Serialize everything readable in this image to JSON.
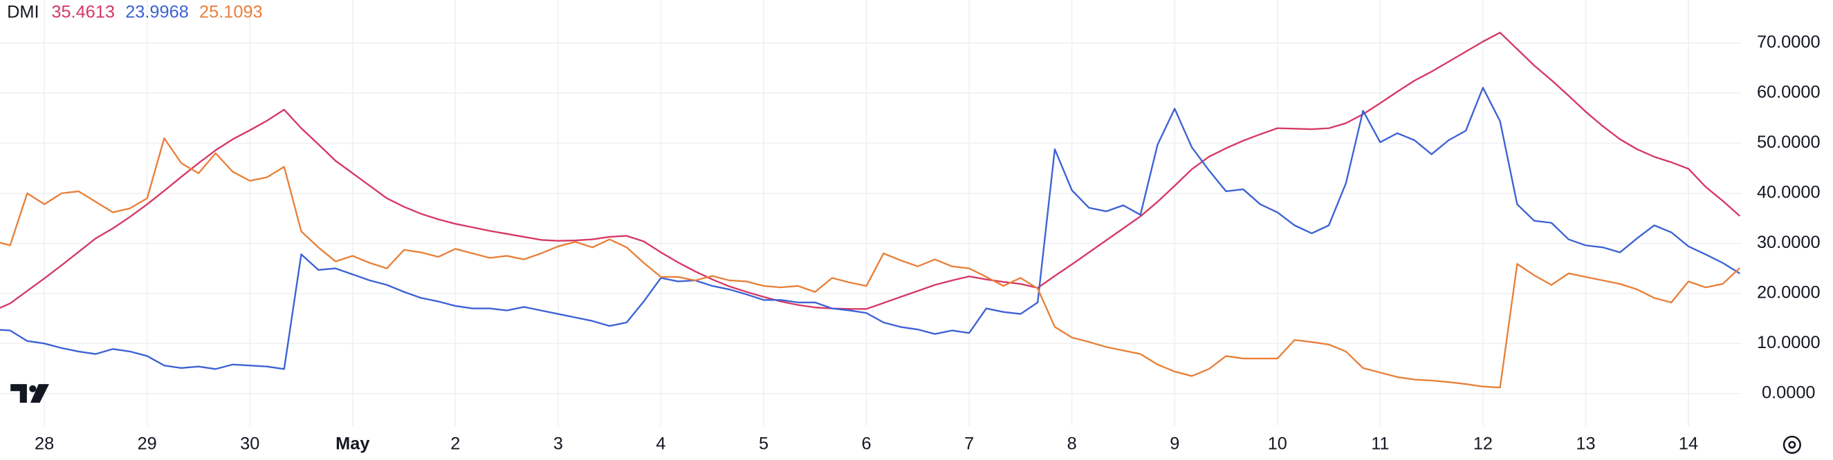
{
  "chart_data": {
    "type": "line",
    "title": "DMI",
    "categories": [
      null,
      null,
      null,
      "28",
      null,
      null,
      null,
      null,
      null,
      "29",
      null,
      null,
      null,
      null,
      null,
      "30",
      null,
      null,
      null,
      null,
      null,
      "May",
      null,
      null,
      null,
      null,
      null,
      "2",
      null,
      null,
      null,
      null,
      null,
      "3",
      null,
      null,
      null,
      null,
      null,
      "4",
      null,
      null,
      null,
      null,
      null,
      "5",
      null,
      null,
      null,
      null,
      null,
      "6",
      null,
      null,
      null,
      null,
      null,
      "7",
      null,
      null,
      null,
      null,
      null,
      "8",
      null,
      null,
      null,
      null,
      null,
      "9",
      null,
      null,
      null,
      null,
      null,
      "10",
      null,
      null,
      null,
      null,
      null,
      "11",
      null,
      null,
      null,
      null,
      null,
      "12",
      null,
      null,
      null,
      null,
      null,
      "13",
      null,
      null,
      null,
      null,
      null,
      "14",
      null,
      null,
      null
    ],
    "series": [
      {
        "color": "#d63864",
        "values": [
          16.5,
          18,
          20.5,
          23,
          25.6,
          28.3,
          31,
          33,
          35.3,
          37.8,
          40.5,
          43.3,
          46,
          48.6,
          50.8,
          52.6,
          54.5,
          56.7,
          53,
          49.8,
          46.5,
          44,
          41.5,
          39,
          37.3,
          35.9,
          34.8,
          33.9,
          33.2,
          32.5,
          31.9,
          31.3,
          30.7,
          30.5,
          30.6,
          30.8,
          31.3,
          31.5,
          30.4,
          28.2,
          26.2,
          24.4,
          22.8,
          21.4,
          20.3,
          19.3,
          18.4,
          17.7,
          17.2,
          17,
          16.9,
          16.9,
          18.1,
          19.3,
          20.5,
          21.7,
          22.6,
          23.4,
          22.8,
          22.3,
          21.9,
          21.1,
          23.5,
          25.8,
          28.2,
          30.6,
          33,
          35.4,
          38.3,
          41.5,
          44.8,
          47.3,
          49,
          50.5,
          51.8,
          53,
          52.9,
          52.8,
          53,
          54,
          55.8,
          58,
          60.3,
          62.5,
          64.3,
          66.3,
          68.3,
          70.3,
          72.1,
          68.8,
          65.5,
          62.6,
          59.5,
          56.3,
          53.4,
          50.8,
          48.8,
          47.3,
          46.2,
          44.9,
          41.3,
          38.5,
          35.4613
        ]
      },
      {
        "color": "#3c62d4",
        "values": [
          12.8,
          12.6,
          10.5,
          10,
          9.1,
          8.4,
          7.9,
          8.9,
          8.4,
          7.5,
          5.6,
          5.1,
          5.4,
          4.9,
          5.8,
          5.6,
          5.4,
          4.9,
          27.8,
          24.7,
          25,
          23.8,
          22.6,
          21.7,
          20.3,
          19.1,
          18.4,
          17.5,
          17,
          17,
          16.6,
          17.3,
          16.6,
          15.9,
          15.2,
          14.5,
          13.5,
          14.2,
          18.4,
          23.1,
          22.4,
          22.6,
          21.5,
          20.8,
          19.8,
          18.7,
          18.7,
          18.2,
          18.2,
          17,
          16.6,
          16.1,
          14.2,
          13.3,
          12.8,
          11.9,
          12.6,
          12.1,
          17,
          16.3,
          15.9,
          18.2,
          48.8,
          40.6,
          37.1,
          36.4,
          37.6,
          35.7,
          49.7,
          56.9,
          49.2,
          44.6,
          40.4,
          40.8,
          37.8,
          36.2,
          33.6,
          32,
          33.6,
          42,
          56.5,
          50.2,
          52,
          50.6,
          47.8,
          50.6,
          52.5,
          61.1,
          54.4,
          37.8,
          34.5,
          34.1,
          30.8,
          29.6,
          29.2,
          28.2,
          31,
          33.6,
          32.2,
          29.4,
          27.8,
          26.1,
          23.9968
        ]
      },
      {
        "color": "#e8803a",
        "values": [
          30.5,
          29.6,
          40,
          37.8,
          40,
          40.4,
          38.3,
          36.2,
          37,
          39,
          51,
          46,
          44,
          48,
          44.3,
          42.5,
          43.2,
          45.3,
          32.4,
          29.2,
          26.4,
          27.5,
          26.1,
          25,
          28.7,
          28.2,
          27.3,
          28.9,
          28,
          27.1,
          27.5,
          26.8,
          28,
          29.4,
          30.3,
          29.2,
          30.8,
          29.2,
          26.1,
          23.3,
          23.3,
          22.6,
          23.5,
          22.6,
          22.4,
          21.5,
          21.2,
          21.5,
          20.3,
          23.1,
          22.2,
          21.5,
          28,
          26.6,
          25.4,
          26.8,
          25.4,
          25,
          23.3,
          21.5,
          23.1,
          21,
          13.3,
          11.2,
          10.3,
          9.3,
          8.6,
          7.9,
          5.8,
          4.4,
          3.5,
          4.9,
          7.5,
          7,
          7,
          7,
          10.7,
          10.3,
          9.8,
          8.4,
          5.1,
          4.2,
          3.3,
          2.8,
          2.6,
          2.3,
          1.9,
          1.4,
          1.2,
          25.9,
          23.6,
          21.7,
          24,
          23.3,
          22.6,
          21.9,
          20.8,
          19.1,
          18.2,
          22.4,
          21.2,
          21.9,
          25.1093
        ]
      }
    ],
    "ylim": [
      -6.5,
      78.6
    ],
    "yticks": [
      {
        "value": 0,
        "label": "0.0000"
      },
      {
        "value": 10,
        "label": "10.0000"
      },
      {
        "value": 20,
        "label": "20.0000"
      },
      {
        "value": 30,
        "label": "30.0000"
      },
      {
        "value": 40,
        "label": "40.0000"
      },
      {
        "value": 50,
        "label": "50.0000"
      },
      {
        "value": 60,
        "label": "60.0000"
      },
      {
        "value": 70,
        "label": "70.0000"
      }
    ],
    "grid": true
  }
}
